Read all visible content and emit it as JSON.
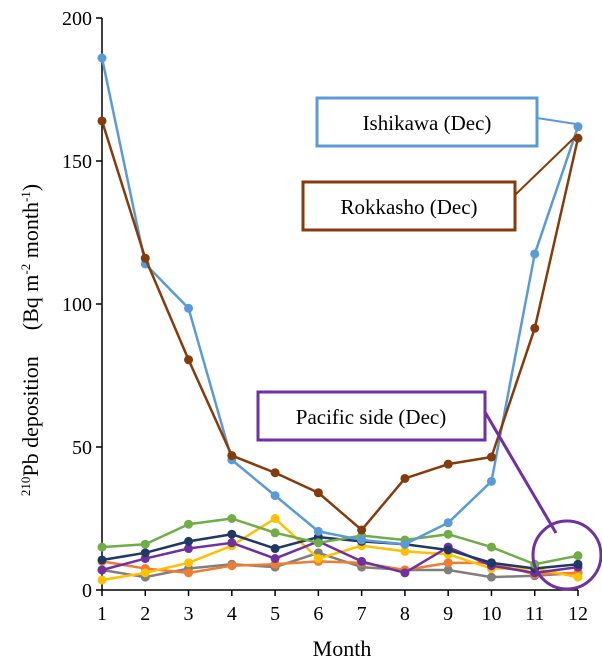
{
  "chart_data": {
    "type": "line",
    "xlabel": "Month",
    "ylabel_sup": "210",
    "ylabel_main": "Pb deposition",
    "ylabel_unit": "(Bq m-2 month-1)",
    "xlim": [
      1,
      12
    ],
    "ylim": [
      0,
      200
    ],
    "x": [
      1,
      2,
      3,
      4,
      5,
      6,
      7,
      8,
      9,
      10,
      11,
      12
    ],
    "x_ticks": [
      "1",
      "2",
      "3",
      "4",
      "5",
      "6",
      "7",
      "8",
      "9",
      "10",
      "11",
      "12"
    ],
    "y_ticks": [
      0,
      50,
      100,
      150,
      200
    ],
    "grid": false,
    "series": [
      {
        "color": "#7f7f7f",
        "values": [
          7,
          4.5,
          7.5,
          9,
          8,
          13,
          8,
          7,
          7,
          4.5,
          5,
          6
        ]
      },
      {
        "color": "#ed7d31",
        "values": [
          10,
          7.5,
          6,
          8.5,
          9,
          10,
          9.5,
          7,
          9.5,
          9.5,
          5.5,
          6
        ]
      },
      {
        "color": "#ffc000",
        "values": [
          3.5,
          6,
          9.5,
          15.5,
          25,
          11,
          15.5,
          13.5,
          12.5,
          7.5,
          7.5,
          4.5
        ]
      },
      {
        "color": "#7030a0",
        "values": [
          7,
          11,
          14.5,
          16.5,
          11,
          17,
          10,
          6,
          15,
          8.5,
          6,
          8
        ]
      },
      {
        "color": "#203864",
        "values": [
          10.5,
          13,
          17,
          19.5,
          14.5,
          18.5,
          17,
          16,
          14,
          9.5,
          7.5,
          9
        ]
      },
      {
        "color": "#70ad47",
        "values": [
          15,
          16,
          23,
          25,
          20,
          16.5,
          19,
          17.5,
          19.5,
          15,
          9,
          12
        ]
      },
      {
        "color": "#5b9bd5",
        "values": [
          186,
          114,
          98.5,
          45.5,
          33,
          20.5,
          17.5,
          16,
          23.5,
          38,
          117.5,
          162
        ]
      },
      {
        "color": "#843c0c",
        "values": [
          164,
          116,
          80.5,
          47,
          41,
          34,
          21,
          39,
          44,
          46.5,
          91.5,
          158
        ]
      }
    ],
    "annotations": [
      {
        "text": "Ishikawa (Dec)",
        "color": "#5b9bd5"
      },
      {
        "text": "Rokkasho (Dec)",
        "color": "#843c0c"
      },
      {
        "text": "Pacific side (Dec)",
        "color": "#7030a0"
      }
    ]
  }
}
